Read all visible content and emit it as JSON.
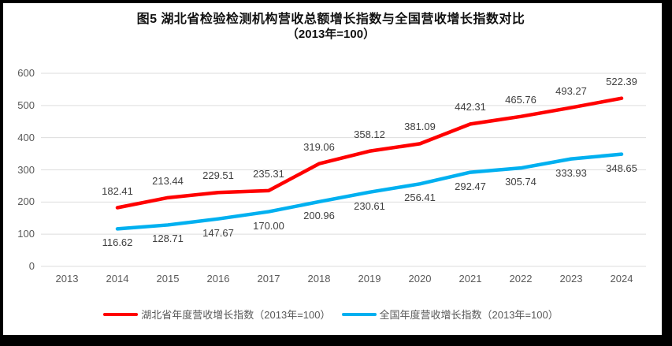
{
  "title": {
    "line1": "图5 湖北省检验检测机构营收总额增长指数与全国营收增长指数对比",
    "line2": "（2013年=100）"
  },
  "chart_data": {
    "type": "line",
    "categories": [
      "2013",
      "2014",
      "2015",
      "2016",
      "2017",
      "2018",
      "2019",
      "2020",
      "2021",
      "2022",
      "2023",
      "2024"
    ],
    "series": [
      {
        "name": "湖北省年度营收增长指数（2013年=100）",
        "color": "#FF0000",
        "label_position": "above",
        "values": [
          null,
          182.41,
          213.44,
          229.51,
          235.31,
          319.06,
          358.12,
          381.09,
          442.31,
          465.76,
          493.27,
          522.39
        ]
      },
      {
        "name": "全国年度营收增长指数（2013年=100）",
        "color": "#00B0F0",
        "label_position": "below",
        "values": [
          null,
          116.62,
          128.71,
          147.67,
          170.0,
          200.96,
          230.61,
          256.41,
          292.47,
          305.74,
          333.93,
          348.65
        ]
      }
    ],
    "ylabel": "",
    "xlabel": "",
    "ylim": [
      0,
      600
    ],
    "ytick_step": 100,
    "grid": true,
    "legend_position": "bottom",
    "value_decimals": 2
  },
  "colors": {
    "grid": "#DDDDDD",
    "axis_text": "#595959",
    "data_label": "#404040",
    "frame": "#000000",
    "background": "#FFFFFF"
  }
}
